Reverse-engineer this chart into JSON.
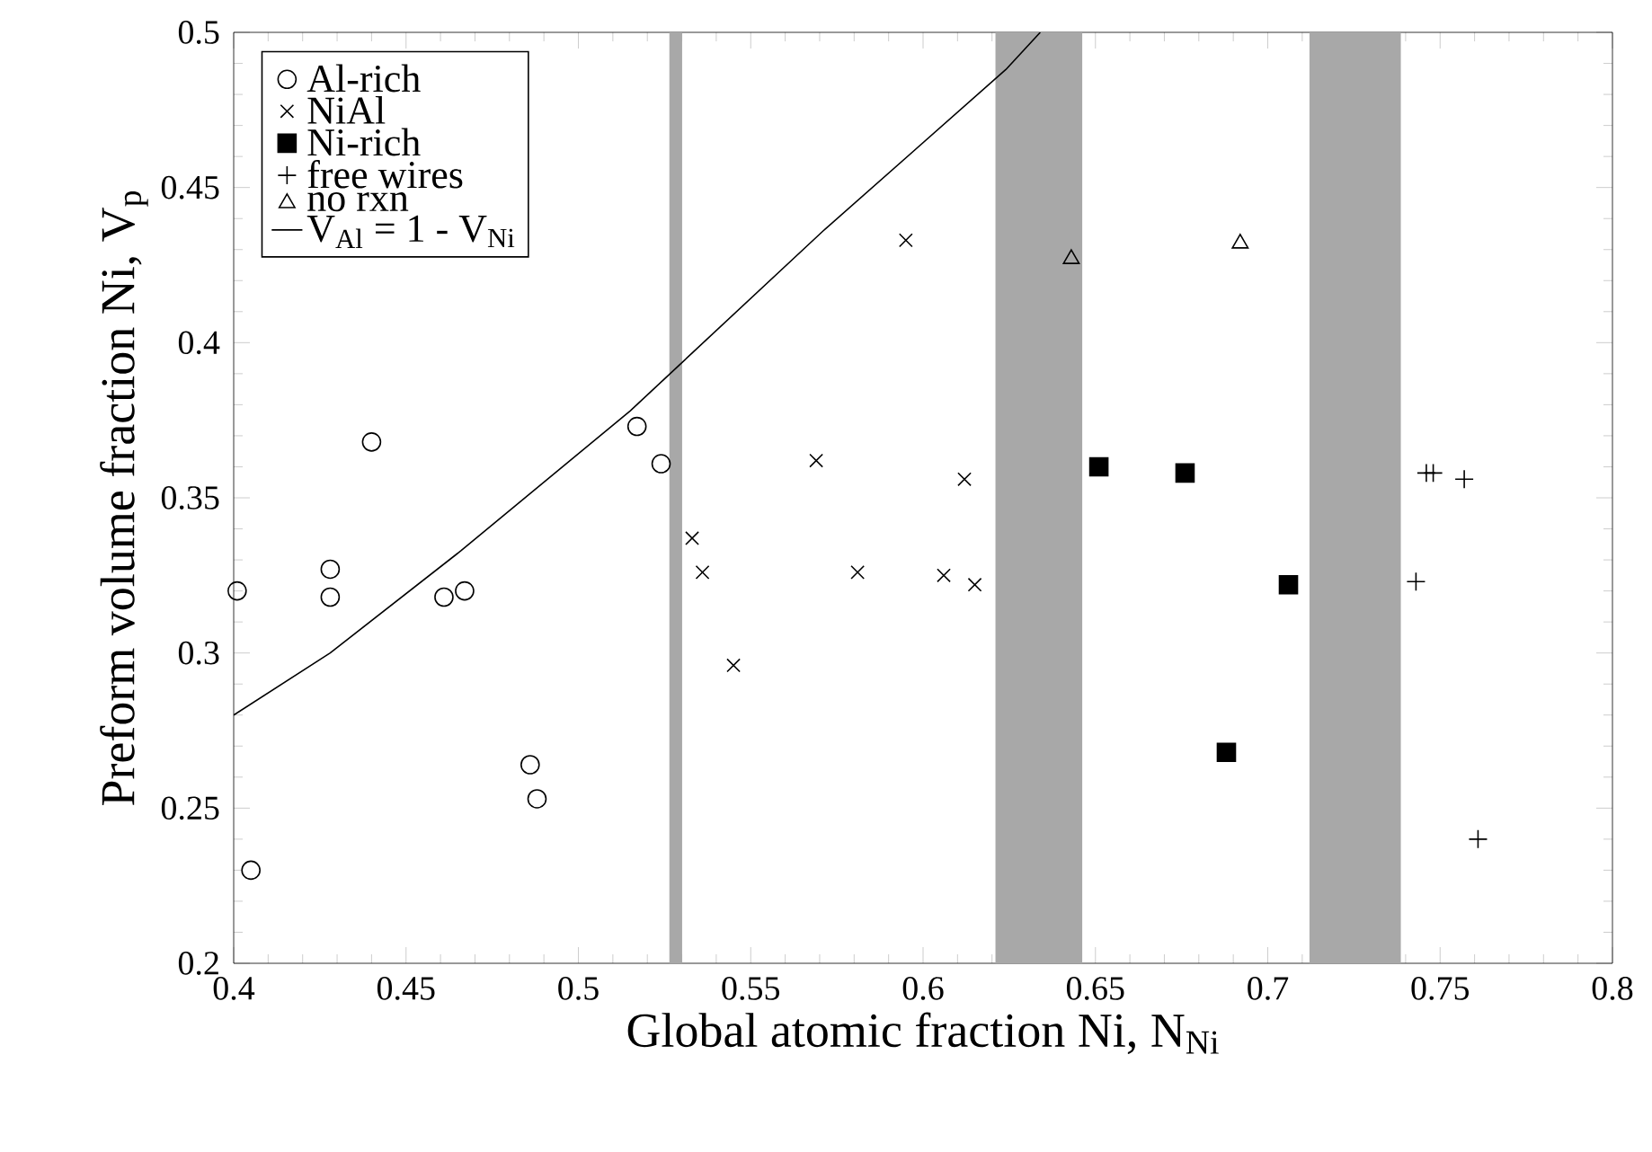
{
  "chart_data": {
    "type": "scatter",
    "xlabel": "Global atomic fraction Ni, N$_{Ni}$",
    "ylabel": "Preform volume fraction Ni, V$_{p}$",
    "xlim": [
      0.4,
      0.8
    ],
    "ylim": [
      0.2,
      0.5
    ],
    "xticks": [
      0.4,
      0.45,
      0.5,
      0.55,
      0.6,
      0.65,
      0.7,
      0.75,
      0.8
    ],
    "yticks": [
      0.2,
      0.25,
      0.3,
      0.35,
      0.4,
      0.45,
      0.5
    ],
    "grid": false,
    "legend": "top left",
    "series": [
      {
        "name": "Al-rich",
        "color": "#000000",
        "marker": "circle",
        "x": [
          0.401,
          0.405,
          0.428,
          0.428,
          0.44,
          0.461,
          0.467,
          0.486,
          0.488,
          0.517,
          0.524
        ],
        "values": [
          0.32,
          0.23,
          0.327,
          0.318,
          0.368,
          0.318,
          0.32,
          0.264,
          0.253,
          0.373,
          0.361
        ]
      },
      {
        "name": "NiAl",
        "color": "#000000",
        "marker": "cross",
        "x": [
          0.533,
          0.536,
          0.545,
          0.569,
          0.581,
          0.595,
          0.606,
          0.612,
          0.615
        ],
        "values": [
          0.337,
          0.326,
          0.296,
          0.362,
          0.326,
          0.433,
          0.325,
          0.356,
          0.322
        ]
      },
      {
        "name": "Ni-rich",
        "color": "#000000",
        "marker": "square",
        "x": [
          0.651,
          0.676,
          0.706,
          0.688
        ],
        "values": [
          0.36,
          0.358,
          0.322,
          0.268
        ]
      },
      {
        "name": "free wires",
        "color": "#000000",
        "marker": "plus",
        "x": [
          0.746,
          0.748,
          0.757,
          0.743,
          0.761
        ],
        "values": [
          0.358,
          0.358,
          0.356,
          0.323,
          0.24
        ]
      },
      {
        "name": "no rxn",
        "color": "#000000",
        "marker": "triangle",
        "x": [
          0.643,
          0.692
        ],
        "values": [
          0.427,
          0.432
        ]
      },
      {
        "name": "V$_{Al}$ = 1 - V$_{Ni}$",
        "type": "line",
        "color": "#000000",
        "marker": "none",
        "line_style": "solid",
        "x": [
          0.4,
          0.428,
          0.466,
          0.515,
          0.571,
          0.624,
          0.634
        ],
        "values": [
          0.28,
          0.3,
          0.333,
          0.378,
          0.436,
          0.488,
          0.5
        ]
      }
    ],
    "bands": [
      {
        "axis": "x",
        "from": 0.5264,
        "to": 0.5301,
        "color": "#a8a8a8"
      },
      {
        "axis": "x",
        "from": 0.621,
        "to": 0.6462,
        "color": "#a8a8a8"
      },
      {
        "axis": "x",
        "from": 0.7121,
        "to": 0.7386,
        "color": "#a8a8a8"
      }
    ]
  }
}
